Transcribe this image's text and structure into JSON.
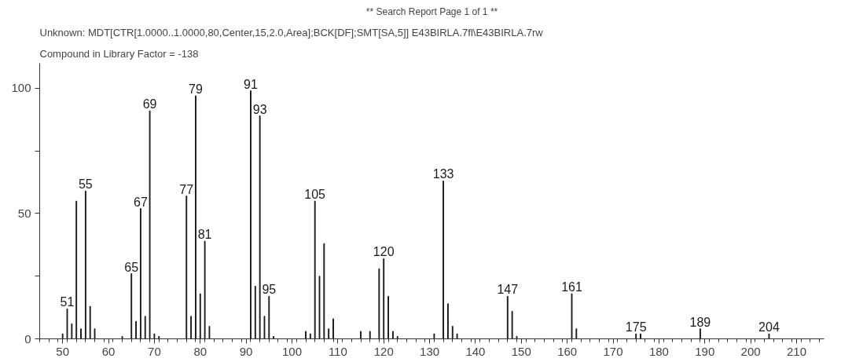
{
  "chart_data": {
    "type": "bar",
    "title": "** Search Report Page 1 of 1 **",
    "subtitle": "Unknown: MDT[CTR[1.0000..1.0000,80,Center,15,2.0,Area];BCK[DF];SMT[SA,5]] E43BIRLA.7fl\\E43BIRLA.7rw",
    "x": [
      50,
      51,
      52,
      53,
      54,
      55,
      56,
      57,
      63,
      65,
      66,
      67,
      68,
      69,
      70,
      71,
      77,
      78,
      79,
      80,
      81,
      82,
      91,
      92,
      93,
      94,
      95,
      96,
      103,
      104,
      105,
      106,
      107,
      108,
      109,
      115,
      117,
      119,
      120,
      121,
      122,
      123,
      131,
      133,
      134,
      135,
      136,
      147,
      148,
      149,
      161,
      162,
      175,
      176,
      189,
      204
    ],
    "values": [
      2,
      12,
      6,
      55,
      4,
      59,
      13,
      4,
      1,
      26,
      7,
      52,
      9,
      91,
      2,
      1,
      57,
      9,
      97,
      18,
      39,
      5,
      99,
      21,
      89,
      9,
      17,
      1,
      3,
      2,
      55,
      25,
      38,
      4,
      8,
      3,
      3,
      28,
      32,
      17,
      3,
      1,
      2,
      63,
      14,
      5,
      2,
      17,
      11,
      1,
      18,
      4,
      2,
      2,
      4,
      2
    ],
    "color": "#1a1a1a",
    "xlim": [
      45,
      216
    ],
    "xticks": [
      50,
      60,
      70,
      80,
      90,
      100,
      110,
      120,
      130,
      140,
      150,
      160,
      170,
      180,
      190,
      200,
      210
    ],
    "ylim": [
      0,
      110
    ],
    "yticks": [
      0,
      {
        "value": 25,
        "label": null
      },
      50,
      {
        "value": 75,
        "label": null
      },
      100
    ],
    "grid": false,
    "annotations": [
      "Compound in Library Factor = -138",
      {
        "text": "51",
        "x": 51,
        "y": 12
      },
      {
        "text": "55",
        "x": 55,
        "y": 59
      },
      {
        "text": "65",
        "x": 65,
        "y": 26
      },
      {
        "text": "67",
        "x": 67,
        "y": 52
      },
      {
        "text": "69",
        "x": 69,
        "y": 91
      },
      {
        "text": "77",
        "x": 77,
        "y": 57
      },
      {
        "text": "79",
        "x": 79,
        "y": 97
      },
      {
        "text": "81",
        "x": 81,
        "y": 39
      },
      {
        "text": "91",
        "x": 91,
        "y": 99
      },
      {
        "text": "93",
        "x": 93,
        "y": 89
      },
      {
        "text": "95",
        "x": 95,
        "y": 17
      },
      {
        "text": "105",
        "x": 105,
        "y": 55
      },
      {
        "text": "120",
        "x": 120,
        "y": 32
      },
      {
        "text": "133",
        "x": 133,
        "y": 63
      },
      {
        "text": "147",
        "x": 147,
        "y": 17
      },
      {
        "text": "161",
        "x": 161,
        "y": 18
      },
      {
        "text": "175",
        "x": 175,
        "y": 2
      },
      {
        "text": "189",
        "x": 189,
        "y": 4
      },
      {
        "text": "204",
        "x": 204,
        "y": 2
      }
    ]
  }
}
